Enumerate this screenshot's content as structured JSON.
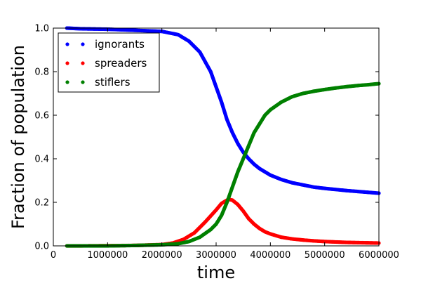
{
  "chart_data": {
    "type": "scatter",
    "xlabel": "time",
    "ylabel": "Fraction of population",
    "xlim": [
      0,
      6000000
    ],
    "ylim": [
      0.0,
      1.0
    ],
    "xticks": [
      0,
      1000000,
      2000000,
      3000000,
      4000000,
      5000000,
      6000000
    ],
    "xtick_labels": [
      "0",
      "1000000",
      "2000000",
      "3000000",
      "4000000",
      "5000000",
      "6000000"
    ],
    "yticks": [
      0.0,
      0.2,
      0.4,
      0.6,
      0.8,
      1.0
    ],
    "ytick_labels": [
      "0.0",
      "0.2",
      "0.4",
      "0.6",
      "0.8",
      "1.0"
    ],
    "grid": false,
    "legend": "upper left",
    "series": [
      {
        "name": " ignorants",
        "color": "#0000ff",
        "x": [
          250000,
          500000,
          1000000,
          1500000,
          2000000,
          2300000,
          2500000,
          2700000,
          2900000,
          3000000,
          3100000,
          3200000,
          3300000,
          3400000,
          3500000,
          3600000,
          3700000,
          3800000,
          3900000,
          4000000,
          4200000,
          4400000,
          4600000,
          4800000,
          5000000,
          5200000,
          5400000,
          5600000,
          5800000,
          6000000
        ],
        "y": [
          1.0,
          0.997,
          0.995,
          0.99,
          0.985,
          0.97,
          0.94,
          0.89,
          0.8,
          0.73,
          0.66,
          0.58,
          0.52,
          0.47,
          0.43,
          0.4,
          0.375,
          0.355,
          0.34,
          0.325,
          0.305,
          0.29,
          0.28,
          0.27,
          0.264,
          0.259,
          0.254,
          0.25,
          0.246,
          0.242
        ]
      },
      {
        "name": "spreaders",
        "color": "#ff0000",
        "x": [
          250000,
          500000,
          1000000,
          1500000,
          2000000,
          2200000,
          2400000,
          2600000,
          2800000,
          3000000,
          3100000,
          3200000,
          3250000,
          3300000,
          3400000,
          3500000,
          3600000,
          3700000,
          3800000,
          3900000,
          4000000,
          4200000,
          4400000,
          4600000,
          4800000,
          5000000,
          5200000,
          5400000,
          5600000,
          5800000,
          6000000
        ],
        "y": [
          0.0,
          0.0,
          0.001,
          0.002,
          0.006,
          0.013,
          0.03,
          0.06,
          0.11,
          0.165,
          0.195,
          0.21,
          0.213,
          0.21,
          0.19,
          0.16,
          0.125,
          0.1,
          0.08,
          0.065,
          0.055,
          0.04,
          0.032,
          0.027,
          0.023,
          0.02,
          0.018,
          0.016,
          0.015,
          0.014,
          0.013
        ]
      },
      {
        "name": "stiflers",
        "color": "#008000",
        "x": [
          250000,
          500000,
          1000000,
          1500000,
          2000000,
          2300000,
          2500000,
          2700000,
          2900000,
          3000000,
          3100000,
          3200000,
          3300000,
          3400000,
          3500000,
          3600000,
          3700000,
          3800000,
          3900000,
          4000000,
          4200000,
          4400000,
          4600000,
          4800000,
          5000000,
          5200000,
          5400000,
          5600000,
          5800000,
          6000000
        ],
        "y": [
          0.0,
          0.0,
          0.0,
          0.002,
          0.005,
          0.01,
          0.02,
          0.04,
          0.075,
          0.1,
          0.14,
          0.2,
          0.27,
          0.34,
          0.4,
          0.46,
          0.52,
          0.56,
          0.6,
          0.625,
          0.66,
          0.685,
          0.7,
          0.71,
          0.718,
          0.725,
          0.731,
          0.736,
          0.74,
          0.745
        ]
      }
    ]
  }
}
